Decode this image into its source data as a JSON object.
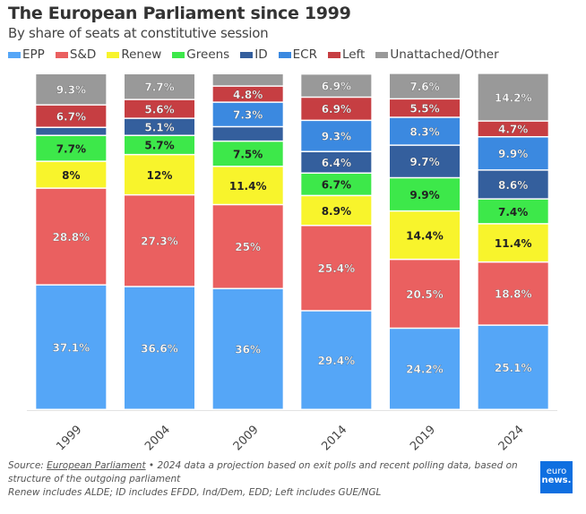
{
  "chart_data": {
    "type": "bar",
    "stacked": true,
    "title": "The European Parliament since 1999",
    "subtitle": "By share of seats at constitutive session",
    "categories": [
      "1999",
      "2004",
      "2009",
      "2014",
      "2019",
      "2024"
    ],
    "ylim": [
      0,
      100
    ],
    "grid": false,
    "legend_position": "top-left",
    "series": [
      {
        "name": "EPP",
        "color": "#55a6f7",
        "label_color": "#ffffff",
        "values": [
          37.1,
          36.6,
          36,
          29.4,
          24.2,
          25.1
        ],
        "labels": [
          "37.1%",
          "36.6%",
          "36%",
          "29.4%",
          "24.2%",
          "25.1%"
        ]
      },
      {
        "name": "S&D",
        "color": "#ea6060",
        "label_color": "#ffffff",
        "values": [
          28.8,
          27.3,
          25,
          25.4,
          20.5,
          18.8
        ],
        "labels": [
          "28.8%",
          "27.3%",
          "25%",
          "25.4%",
          "20.5%",
          "18.8%"
        ]
      },
      {
        "name": "Renew",
        "color": "#f8f42c",
        "label_color": "#222222",
        "values": [
          8,
          12,
          11.4,
          8.9,
          14.4,
          11.4
        ],
        "labels": [
          "8%",
          "12%",
          "11.4%",
          "8.9%",
          "14.4%",
          "11.4%"
        ]
      },
      {
        "name": "Greens",
        "color": "#3de84a",
        "label_color": "#222222",
        "values": [
          7.7,
          5.7,
          7.5,
          6.7,
          9.9,
          7.4
        ],
        "labels": [
          "7.7%",
          "5.7%",
          "7.5%",
          "6.7%",
          "9.9%",
          "7.4%"
        ]
      },
      {
        "name": "ID",
        "color": "#345f9d",
        "label_color": "#ffffff",
        "values": [
          2.4,
          5.1,
          4.3,
          6.4,
          9.7,
          8.6
        ],
        "labels": [
          null,
          "5.1%",
          null,
          "6.4%",
          "9.7%",
          "8.6%"
        ]
      },
      {
        "name": "ECR",
        "color": "#3b89e0",
        "label_color": "#ffffff",
        "values": [
          0,
          0,
          7.3,
          9.3,
          8.3,
          9.9
        ],
        "labels": [
          null,
          null,
          "7.3%",
          "9.3%",
          "8.3%",
          "9.9%"
        ]
      },
      {
        "name": "Left",
        "color": "#c63e42",
        "label_color": "#ffffff",
        "values": [
          6.7,
          5.6,
          4.8,
          6.9,
          5.5,
          4.7
        ],
        "labels": [
          "6.7%",
          "5.6%",
          "4.8%",
          "6.9%",
          "5.5%",
          "4.7%"
        ]
      },
      {
        "name": "Unattached/Other",
        "color": "#999999",
        "label_color": "#ffffff",
        "values": [
          9.3,
          7.7,
          3.7,
          6.9,
          7.6,
          14.2
        ],
        "labels": [
          "9.3%",
          "7.7%",
          null,
          "6.9%",
          "7.6%",
          "14.2%"
        ]
      }
    ]
  },
  "footer": {
    "source_prefix": "Source: ",
    "source_link": "European Parliament",
    "note1": " • 2024 data a projection based on exit polls and recent polling data, based on structure of the outgoing parliament",
    "note2": "Renew includes ALDE; ID includes EFDD, Ind/Dem, EDD; Left includes GUE/NGL"
  },
  "logo": {
    "line1": "euro",
    "line2": "news."
  }
}
